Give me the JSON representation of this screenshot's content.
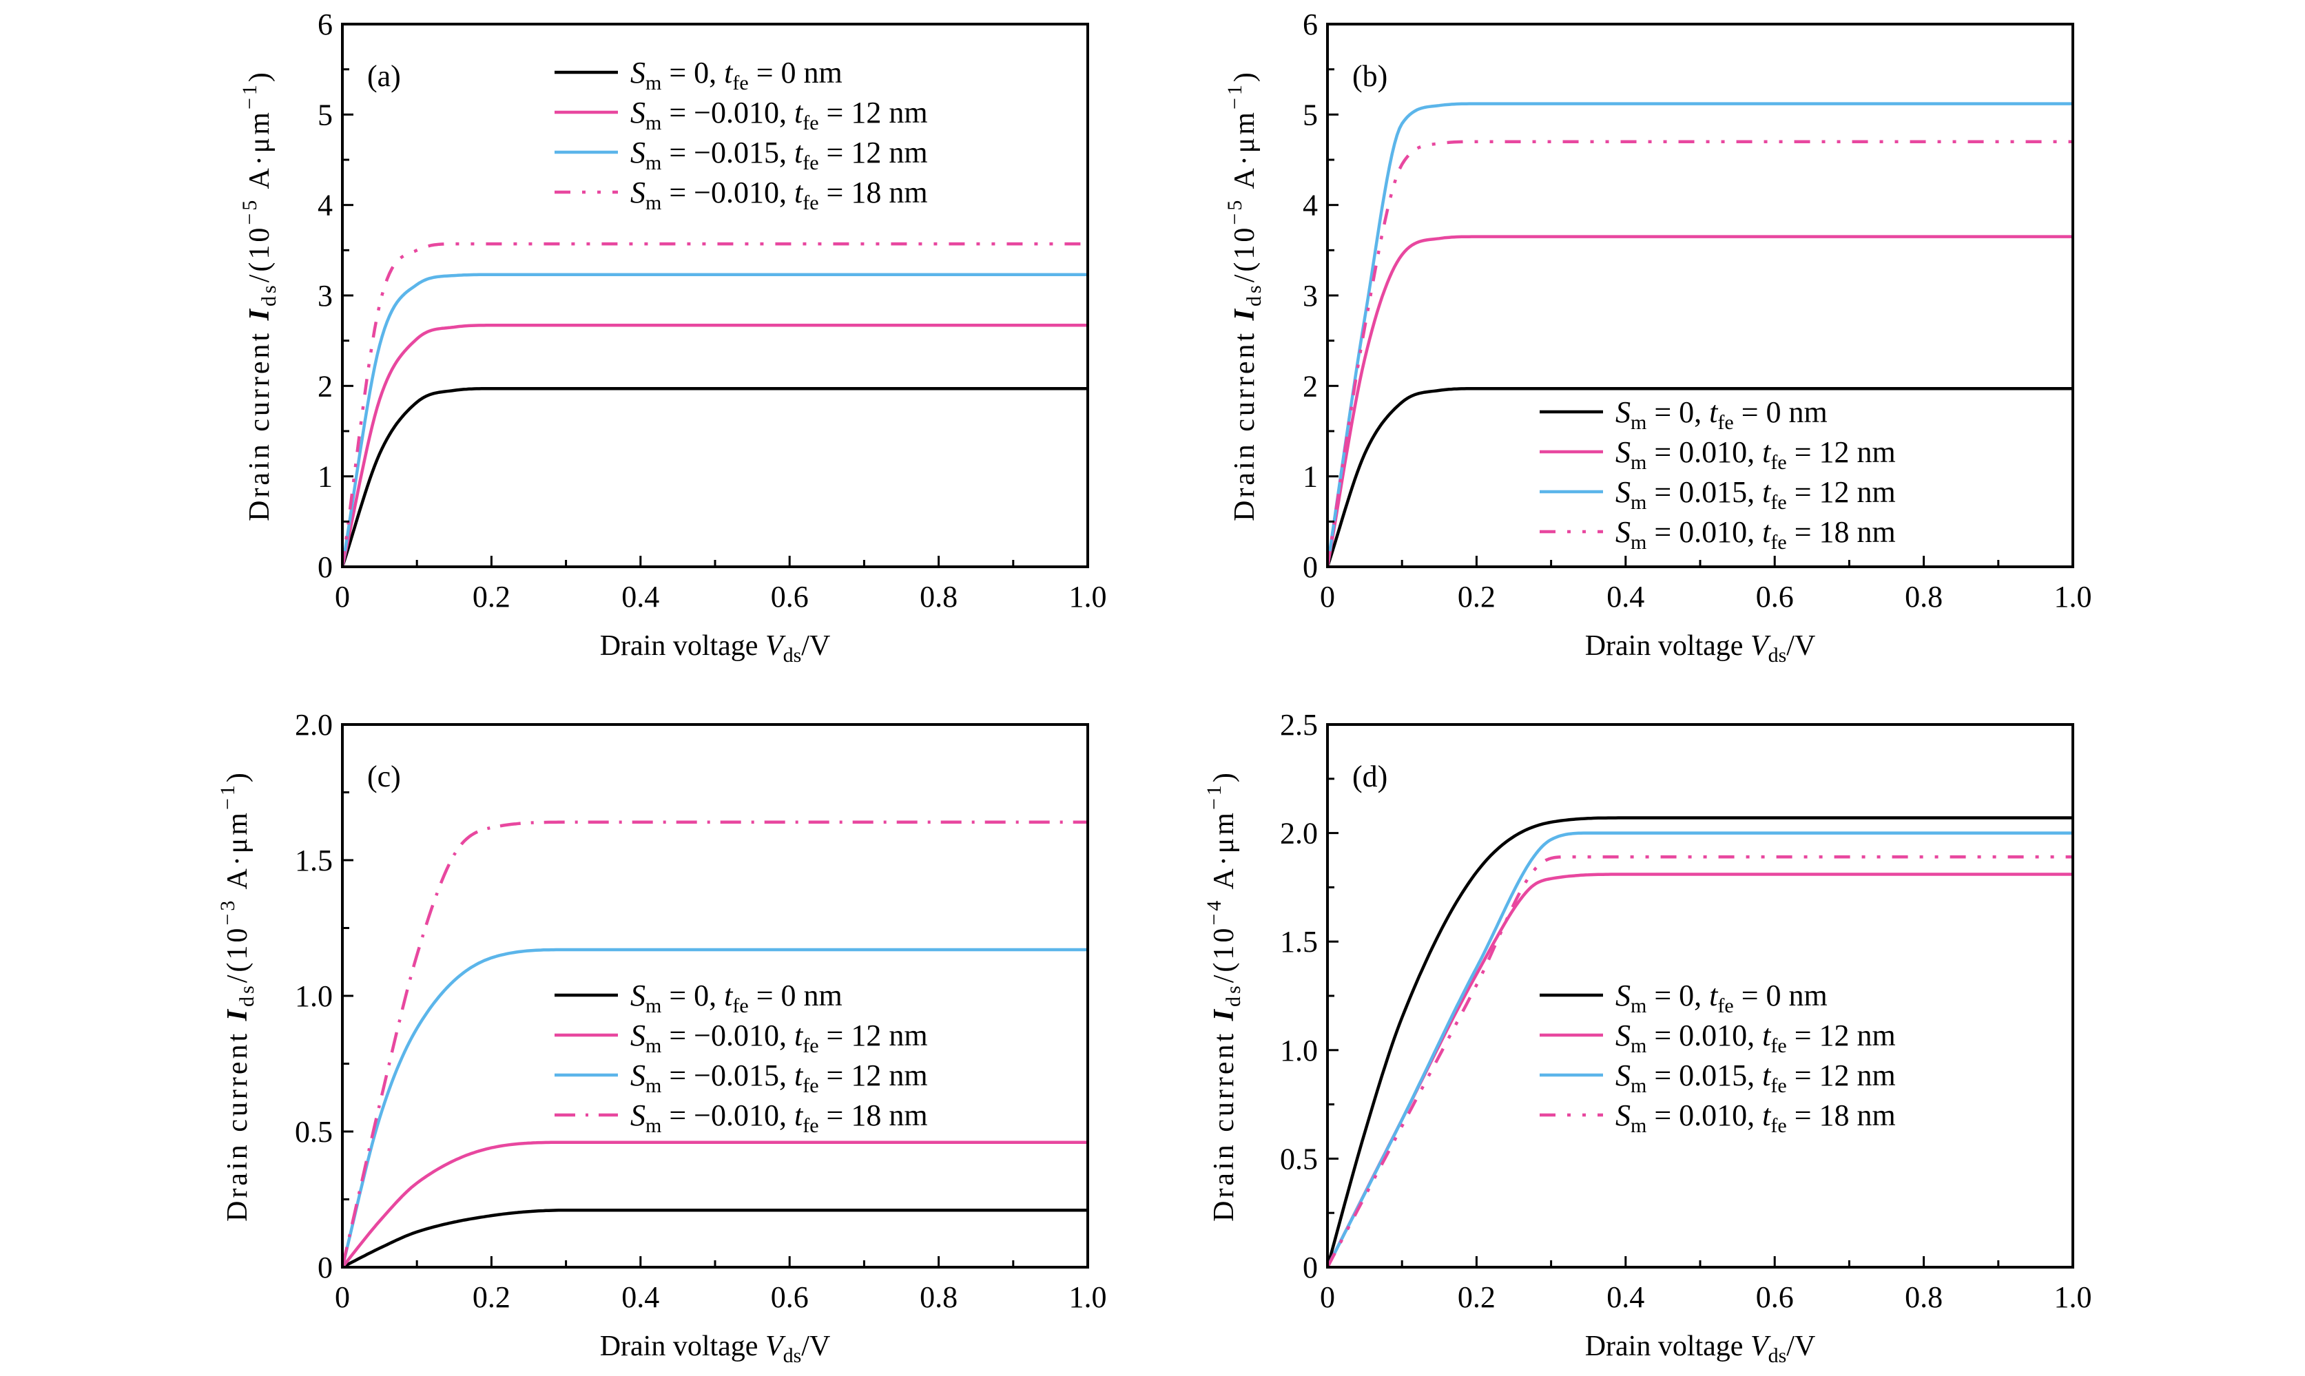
{
  "colors": {
    "black": "#000000",
    "pink": "#E8479F",
    "blue": "#5BB5EA"
  },
  "chart_data": [
    {
      "type": "line",
      "panel_label": "(a)",
      "xlabel": "Drain voltage V_ds/V",
      "xlabel_parts": {
        "pre": "Drain voltage ",
        "var": "V",
        "sub": "ds",
        "post": "/V"
      },
      "ylabel": "Drain current I_ds/(10^-5 A·μm^-1)",
      "ylabel_parts": {
        "pre": "Drain current ",
        "var": "I",
        "sub": "ds",
        "mid": "/(10",
        "exp": "−5",
        "post": " A·μm",
        "exp2": "−1",
        "end": ")"
      },
      "xlim": [
        0,
        1.0
      ],
      "ylim": [
        0,
        6
      ],
      "xticks": [
        0,
        0.2,
        0.4,
        0.6,
        0.8,
        1.0
      ],
      "xtick_labels": [
        "0",
        "0.2",
        "0.4",
        "0.6",
        "0.8",
        "1.0"
      ],
      "yticks": [
        0,
        1,
        2,
        3,
        4,
        5,
        6
      ],
      "ytick_labels": [
        "0",
        "1",
        "2",
        "3",
        "4",
        "5",
        "6"
      ],
      "x_minor_step": 0.1,
      "y_minor_step": 0.5,
      "grid": false,
      "legend_position": "top-right",
      "series": [
        {
          "name": "S_m = 0, t_fe = 0 nm",
          "sm": "0",
          "tfe": "0",
          "color": "#000000",
          "style": "solid",
          "sat": 1.97,
          "knee": 0.13,
          "linear_frac": 0.0,
          "x": [
            0,
            0.05,
            0.1,
            0.15,
            0.2,
            0.3,
            0.5,
            1.0
          ],
          "y": [
            0,
            1.25,
            1.82,
            1.95,
            1.97,
            1.97,
            1.97,
            1.97
          ]
        },
        {
          "name": "S_m = -0.010, t_fe = 12 nm",
          "sm": "−0.010",
          "tfe": "12",
          "color": "#E8479F",
          "style": "solid",
          "sat": 2.67,
          "knee": 0.12,
          "linear_frac": 0.0,
          "x": [
            0,
            0.05,
            0.1,
            0.15,
            0.2,
            0.3,
            0.5,
            1.0
          ],
          "y": [
            0,
            1.85,
            2.52,
            2.65,
            2.67,
            2.67,
            2.67,
            2.67
          ]
        },
        {
          "name": "S_m = -0.015, t_fe = 12 nm",
          "sm": "−0.015",
          "tfe": "12",
          "color": "#5BB5EA",
          "style": "solid",
          "sat": 3.23,
          "knee": 0.11,
          "linear_frac": 0.0,
          "x": [
            0,
            0.05,
            0.1,
            0.15,
            0.2,
            0.3,
            0.5,
            1.0
          ],
          "y": [
            0,
            2.45,
            3.12,
            3.22,
            3.23,
            3.23,
            3.23,
            3.23
          ]
        },
        {
          "name": "S_m = -0.010, t_fe = 18 nm",
          "sm": "−0.010",
          "tfe": "18",
          "color": "#E8479F",
          "style": "dash-dot-dot",
          "sat": 3.57,
          "knee": 0.1,
          "linear_frac": 0.0,
          "x": [
            0,
            0.05,
            0.1,
            0.15,
            0.2,
            0.3,
            0.5,
            1.0
          ],
          "y": [
            0,
            2.9,
            3.5,
            3.57,
            3.57,
            3.57,
            3.57,
            3.57
          ]
        }
      ]
    },
    {
      "type": "line",
      "panel_label": "(b)",
      "xlabel": "Drain voltage V_ds/V",
      "xlabel_parts": {
        "pre": "Drain voltage ",
        "var": "V",
        "sub": "ds",
        "post": "/V"
      },
      "ylabel": "Drain current I_ds/(10^-5 A·μm^-1)",
      "ylabel_parts": {
        "pre": "Drain current ",
        "var": "I",
        "sub": "ds",
        "mid": "/(10",
        "exp": "−5",
        "post": " A·μm",
        "exp2": "−1",
        "end": ")"
      },
      "xlim": [
        0,
        1.0
      ],
      "ylim": [
        0,
        6
      ],
      "xticks": [
        0,
        0.2,
        0.4,
        0.6,
        0.8,
        1.0
      ],
      "xtick_labels": [
        "0",
        "0.2",
        "0.4",
        "0.6",
        "0.8",
        "1.0"
      ],
      "yticks": [
        0,
        1,
        2,
        3,
        4,
        5,
        6
      ],
      "ytick_labels": [
        "0",
        "1",
        "2",
        "3",
        "4",
        "5",
        "6"
      ],
      "x_minor_step": 0.1,
      "y_minor_step": 0.5,
      "grid": false,
      "legend_position": "bottom-right",
      "series": [
        {
          "name": "S_m = 0, t_fe = 0 nm",
          "sm": "0",
          "tfe": "0",
          "color": "#000000",
          "style": "solid",
          "sat": 1.97,
          "knee": 0.13,
          "linear_frac": 0.0,
          "x": [
            0,
            0.05,
            0.1,
            0.15,
            0.2,
            0.3,
            0.5,
            1.0
          ],
          "y": [
            0,
            1.25,
            1.82,
            1.95,
            1.97,
            1.97,
            1.97,
            1.97
          ]
        },
        {
          "name": "S_m = 0.010, t_fe = 12 nm",
          "sm": "0.010",
          "tfe": "12",
          "color": "#E8479F",
          "style": "solid",
          "sat": 3.65,
          "knee": 0.11,
          "linear_frac": 0.5,
          "x": [
            0,
            0.05,
            0.1,
            0.15,
            0.2,
            0.3,
            0.5,
            1.0
          ],
          "y": [
            0,
            2.3,
            3.45,
            3.63,
            3.65,
            3.65,
            3.65,
            3.65
          ]
        },
        {
          "name": "S_m = 0.015, t_fe = 12 nm",
          "sm": "0.015",
          "tfe": "12",
          "color": "#5BB5EA",
          "style": "solid",
          "sat": 5.12,
          "knee": 0.1,
          "linear_frac": 0.85,
          "x": [
            0,
            0.05,
            0.1,
            0.15,
            0.2,
            0.3,
            0.5,
            1.0
          ],
          "y": [
            0,
            2.75,
            4.9,
            5.1,
            5.12,
            5.12,
            5.12,
            5.12
          ]
        },
        {
          "name": "S_m = 0.010, t_fe = 18 nm",
          "sm": "0.010",
          "tfe": "18",
          "color": "#E8479F",
          "style": "dash-dot-dot",
          "sat": 4.7,
          "knee": 0.1,
          "linear_frac": 0.85,
          "x": [
            0,
            0.05,
            0.1,
            0.15,
            0.2,
            0.3,
            0.5,
            1.0
          ],
          "y": [
            0,
            2.65,
            4.45,
            4.68,
            4.7,
            4.7,
            4.7,
            4.7
          ]
        }
      ]
    },
    {
      "type": "line",
      "panel_label": "(c)",
      "xlabel": "Drain voltage V_ds/V",
      "xlabel_parts": {
        "pre": "Drain voltage ",
        "var": "V",
        "sub": "ds",
        "post": "/V"
      },
      "ylabel": "Drain current I_ds/(10^-3 A·μm^-1)",
      "ylabel_parts": {
        "pre": "Drain current ",
        "var": "I",
        "sub": "ds",
        "mid": "/(10",
        "exp": "−3",
        "post": " A·μm",
        "exp2": "−1",
        "end": ")"
      },
      "xlim": [
        0,
        1.0
      ],
      "ylim": [
        0,
        2.0
      ],
      "xticks": [
        0,
        0.2,
        0.4,
        0.6,
        0.8,
        1.0
      ],
      "xtick_labels": [
        "0",
        "0.2",
        "0.4",
        "0.6",
        "0.8",
        "1.0"
      ],
      "yticks": [
        0,
        0.5,
        1.0,
        1.5,
        2.0
      ],
      "ytick_labels": [
        "0",
        "0.5",
        "1.0",
        "1.5",
        "2.0"
      ],
      "x_minor_step": 0.1,
      "y_minor_step": 0.25,
      "grid": false,
      "legend_position": "center-right",
      "series": [
        {
          "name": "S_m = 0, t_fe = 0 nm",
          "sm": "0",
          "tfe": "0",
          "color": "#000000",
          "style": "solid",
          "sat": 0.21,
          "knee": 0.3,
          "linear_frac": 0.0,
          "x": [
            0,
            0.05,
            0.1,
            0.2,
            0.3,
            0.5,
            1.0
          ],
          "y": [
            0,
            0.07,
            0.13,
            0.19,
            0.21,
            0.21,
            0.21
          ]
        },
        {
          "name": "S_m = -0.010, t_fe = 12 nm",
          "sm": "−0.010",
          "tfe": "12",
          "color": "#E8479F",
          "style": "solid",
          "sat": 0.46,
          "knee": 0.28,
          "linear_frac": 0.0,
          "x": [
            0,
            0.05,
            0.1,
            0.2,
            0.3,
            0.5,
            1.0
          ],
          "y": [
            0,
            0.17,
            0.31,
            0.44,
            0.46,
            0.46,
            0.46
          ]
        },
        {
          "name": "S_m = -0.015, t_fe = 12 nm",
          "sm": "−0.015",
          "tfe": "12",
          "color": "#5BB5EA",
          "style": "solid",
          "sat": 1.17,
          "knee": 0.25,
          "linear_frac": 0.0,
          "x": [
            0,
            0.05,
            0.1,
            0.2,
            0.3,
            0.5,
            1.0
          ],
          "y": [
            0,
            0.55,
            0.88,
            1.14,
            1.17,
            1.17,
            1.17
          ]
        },
        {
          "name": "S_m = -0.010, t_fe = 18 nm",
          "sm": "−0.010",
          "tfe": "18",
          "color": "#E8479F",
          "style": "dash-dot",
          "sat": 1.64,
          "knee": 0.17,
          "linear_frac": 0.75,
          "x": [
            0,
            0.05,
            0.1,
            0.15,
            0.2,
            0.3,
            0.5,
            1.0
          ],
          "y": [
            0,
            0.6,
            1.15,
            1.52,
            1.62,
            1.64,
            1.64,
            1.64
          ]
        }
      ]
    },
    {
      "type": "line",
      "panel_label": "(d)",
      "xlabel": "Drain voltage V_ds/V",
      "xlabel_parts": {
        "pre": "Drain voltage ",
        "var": "V",
        "sub": "ds",
        "post": "/V"
      },
      "ylabel": "Drain current I_ds/(10^-4 A·μm^-1)",
      "ylabel_parts": {
        "pre": "Drain current ",
        "var": "I",
        "sub": "ds",
        "mid": "/(10",
        "exp": "−4",
        "post": " A·μm",
        "exp2": "−1",
        "end": ")"
      },
      "xlim": [
        0,
        1.0
      ],
      "ylim": [
        0,
        2.5
      ],
      "xticks": [
        0,
        0.2,
        0.4,
        0.6,
        0.8,
        1.0
      ],
      "xtick_labels": [
        "0",
        "0.2",
        "0.4",
        "0.6",
        "0.8",
        "1.0"
      ],
      "yticks": [
        0,
        0.5,
        1.0,
        1.5,
        2.0,
        2.5
      ],
      "ytick_labels": [
        "0",
        "0.5",
        "1.0",
        "1.5",
        "2.0",
        "2.5"
      ],
      "x_minor_step": 0.1,
      "y_minor_step": 0.25,
      "grid": false,
      "legend_position": "center-right",
      "series": [
        {
          "name": "S_m = 0, t_fe = 0 nm",
          "sm": "0",
          "tfe": "0",
          "color": "#000000",
          "style": "solid",
          "sat": 2.07,
          "knee": 0.33,
          "linear_frac": 0.0,
          "x": [
            0,
            0.05,
            0.1,
            0.2,
            0.3,
            0.4,
            1.0
          ],
          "y": [
            0,
            0.62,
            1.15,
            1.82,
            2.05,
            2.07,
            2.07
          ]
        },
        {
          "name": "S_m = 0.010, t_fe = 12 nm",
          "sm": "0.010",
          "tfe": "12",
          "color": "#E8479F",
          "style": "solid",
          "sat": 1.81,
          "knee": 0.3,
          "linear_frac": 0.85,
          "x": [
            0,
            0.1,
            0.2,
            0.27,
            0.3,
            0.4,
            1.0
          ],
          "y": [
            0,
            0.68,
            1.35,
            1.74,
            1.79,
            1.81,
            1.81
          ]
        },
        {
          "name": "S_m = 0.015, t_fe = 12 nm",
          "sm": "0.015",
          "tfe": "12",
          "color": "#5BB5EA",
          "style": "solid",
          "sat": 2.0,
          "knee": 0.3,
          "linear_frac": 0.92,
          "x": [
            0,
            0.1,
            0.2,
            0.3,
            0.35,
            1.0
          ],
          "y": [
            0,
            0.68,
            1.38,
            1.97,
            2.0,
            2.0
          ]
        },
        {
          "name": "S_m = 0.010, t_fe = 18 nm",
          "sm": "0.010",
          "tfe": "18",
          "color": "#E8479F",
          "style": "dash-dot-dot",
          "sat": 1.89,
          "knee": 0.29,
          "linear_frac": 0.9,
          "x": [
            0,
            0.1,
            0.2,
            0.28,
            0.32,
            1.0
          ],
          "y": [
            0,
            0.65,
            1.3,
            1.84,
            1.89,
            1.89
          ]
        }
      ]
    }
  ]
}
